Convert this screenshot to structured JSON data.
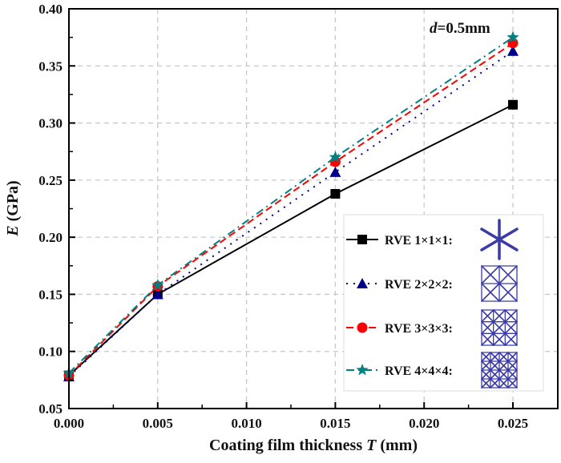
{
  "chart_data": {
    "type": "line",
    "title": "",
    "xlabel": "Coating film thickness T (mm)",
    "xlabel_parts": {
      "pre": "Coating film thickness ",
      "italic": "T",
      "post": " (mm)"
    },
    "ylabel": "E (GPa)",
    "ylabel_parts": {
      "italic": "E",
      "post": " (GPa)"
    },
    "xlim": [
      0.0,
      0.027
    ],
    "ylim": [
      0.05,
      0.4
    ],
    "xticks": [
      0.0,
      0.005,
      0.01,
      0.015,
      0.02,
      0.025
    ],
    "xtick_labels": [
      "0.000",
      "0.005",
      "0.010",
      "0.015",
      "0.020",
      "0.025"
    ],
    "yticks": [
      0.05,
      0.1,
      0.15,
      0.2,
      0.25,
      0.3,
      0.35,
      0.4
    ],
    "ytick_labels": [
      "0.05",
      "0.10",
      "0.15",
      "0.20",
      "0.25",
      "0.30",
      "0.35",
      "0.40"
    ],
    "grid": true,
    "legend_position": "bottom-right",
    "annotation": {
      "italic": "d",
      "text": "=0.5mm"
    },
    "x": [
      0.0,
      0.005,
      0.015,
      0.025
    ],
    "series": [
      {
        "name": "RVE 1×1×1:",
        "color": "#000000",
        "marker": "square",
        "line": "solid",
        "values": [
          0.079,
          0.15,
          0.238,
          0.316
        ]
      },
      {
        "name": "RVE 2×2×2:",
        "color": "#00008b",
        "marker": "triangle",
        "line": "dot",
        "values": [
          0.078,
          0.15,
          0.257,
          0.363
        ]
      },
      {
        "name": "RVE 3×3×3:",
        "color": "#ff0000",
        "marker": "circle",
        "line": "dash",
        "values": [
          0.079,
          0.157,
          0.266,
          0.37
        ]
      },
      {
        "name": "RVE 4×4×4:",
        "color": "#008080",
        "marker": "star",
        "line": "dashdot",
        "values": [
          0.081,
          0.158,
          0.27,
          0.375
        ]
      }
    ],
    "legend_icons": [
      "rve-1x1x1-lattice-icon",
      "rve-2x2x2-lattice-icon",
      "rve-3x3x3-lattice-icon",
      "rve-4x4x4-lattice-icon"
    ],
    "lattice_color": "#3a3aa8"
  }
}
